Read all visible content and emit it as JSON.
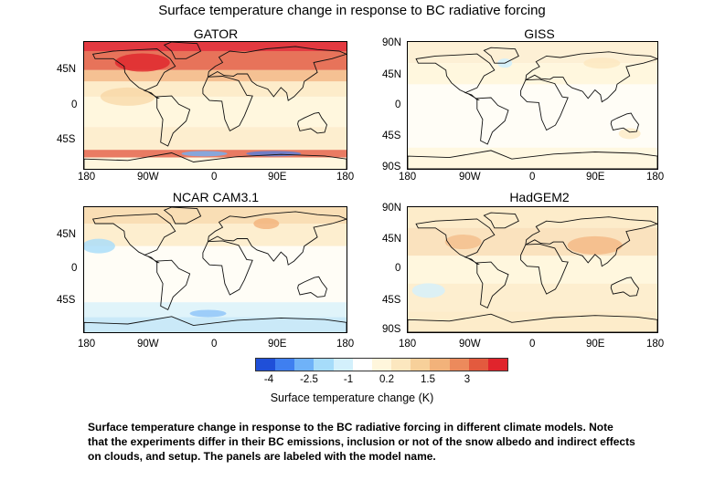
{
  "chart_data": {
    "type": "heatmap",
    "title": "Surface temperature change in response to BC radiative forcing",
    "panels": [
      {
        "title": "GATOR",
        "yticks": [
          "45N",
          "0",
          "45S"
        ],
        "xticks": [
          "180",
          "90W",
          "0",
          "90E",
          "180"
        ]
      },
      {
        "title": "GISS",
        "yticks": [
          "90N",
          "45N",
          "0",
          "45S",
          "90S"
        ],
        "xticks": [
          "180",
          "90W",
          "0",
          "90E",
          "180"
        ]
      },
      {
        "title": "NCAR CAM3.1",
        "yticks": [
          "45N",
          "0",
          "45S"
        ],
        "xticks": [
          "180",
          "90W",
          "0",
          "90E",
          "180"
        ]
      },
      {
        "title": "HadGEM2",
        "yticks": [
          "90N",
          "45N",
          "0",
          "45S",
          "90S"
        ],
        "xticks": [
          "180",
          "90W",
          "0",
          "90E",
          "180"
        ]
      }
    ],
    "colorbar": {
      "label": "Surface temperature change (K)",
      "ticks": [
        "-4",
        "-2.5",
        "-1",
        "0.2",
        "1.5",
        "3"
      ],
      "colors": [
        "#1f4fd8",
        "#3f7ff0",
        "#6fb2f8",
        "#a6dcfa",
        "#d3f0fc",
        "#ffffff",
        "#fff6dc",
        "#fce7bf",
        "#f7d09a",
        "#f2b27a",
        "#ec8a5c",
        "#e35a3e",
        "#e0242c"
      ]
    }
  },
  "caption": "Surface temperature change in response to the BC radiative forcing in different climate models. Note that the experiments differ in their BC emissions, inclusion or not of the snow albedo and indirect effects on clouds, and setup. The panels are labeled with the model name."
}
